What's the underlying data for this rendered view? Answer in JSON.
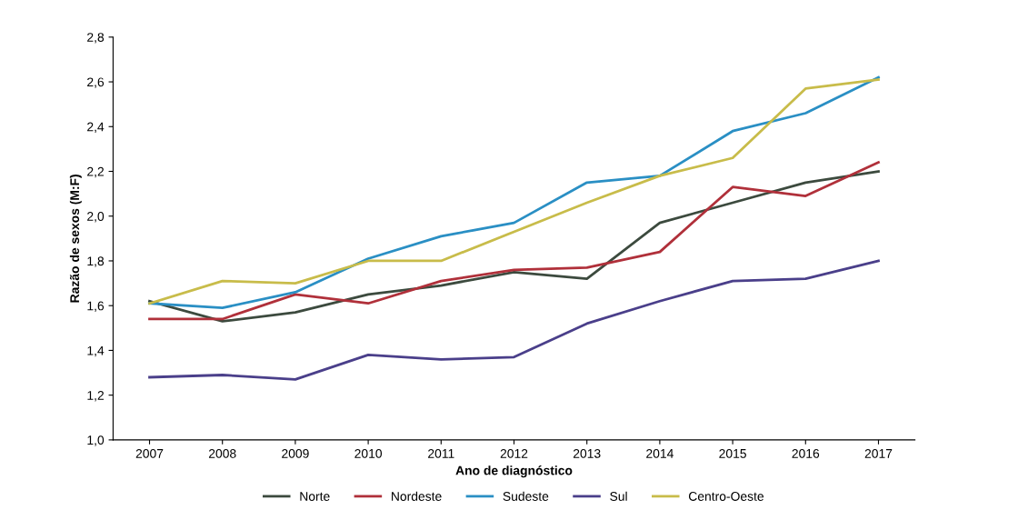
{
  "chart_data": {
    "type": "line",
    "xlabel": "Ano de diagnóstico",
    "ylabel": "Razão de sexos (M:F)",
    "categories": [
      "2007",
      "2008",
      "2009",
      "2010",
      "2011",
      "2012",
      "2013",
      "2014",
      "2015",
      "2016",
      "2017"
    ],
    "series": [
      {
        "name": "Norte",
        "color": "#3c4a3e",
        "values": [
          1.62,
          1.53,
          1.57,
          1.65,
          1.69,
          1.75,
          1.72,
          1.97,
          2.06,
          2.15,
          2.2
        ]
      },
      {
        "name": "Nordeste",
        "color": "#b0303a",
        "values": [
          1.54,
          1.54,
          1.65,
          1.61,
          1.71,
          1.76,
          1.77,
          1.84,
          2.13,
          2.09,
          2.24
        ]
      },
      {
        "name": "Sudeste",
        "color": "#2a8fc4",
        "values": [
          1.61,
          1.59,
          1.66,
          1.81,
          1.91,
          1.97,
          2.15,
          2.18,
          2.38,
          2.46,
          2.62
        ]
      },
      {
        "name": "Sul",
        "color": "#4a3f8a",
        "values": [
          1.28,
          1.29,
          1.27,
          1.38,
          1.36,
          1.37,
          1.52,
          1.62,
          1.71,
          1.72,
          1.8
        ]
      },
      {
        "name": "Centro-Oeste",
        "color": "#c8bc4a",
        "values": [
          1.61,
          1.71,
          1.7,
          1.8,
          1.8,
          1.93,
          2.06,
          2.18,
          2.26,
          2.57,
          2.61
        ]
      }
    ],
    "ylim": [
      1.0,
      2.8
    ],
    "yticks": [
      {
        "value": 1.0,
        "label": "1,0"
      },
      {
        "value": 1.2,
        "label": "1,2"
      },
      {
        "value": 1.4,
        "label": "1,4"
      },
      {
        "value": 1.6,
        "label": "1,6"
      },
      {
        "value": 1.8,
        "label": "1,8"
      },
      {
        "value": 2.0,
        "label": "2,0"
      },
      {
        "value": 2.2,
        "label": "2,2"
      },
      {
        "value": 2.4,
        "label": "2,4"
      },
      {
        "value": 2.6,
        "label": "2,6"
      },
      {
        "value": 2.8,
        "label": "2,8"
      }
    ],
    "grid": false,
    "legend": "bottom",
    "marker": "none",
    "line_style": "solid"
  }
}
